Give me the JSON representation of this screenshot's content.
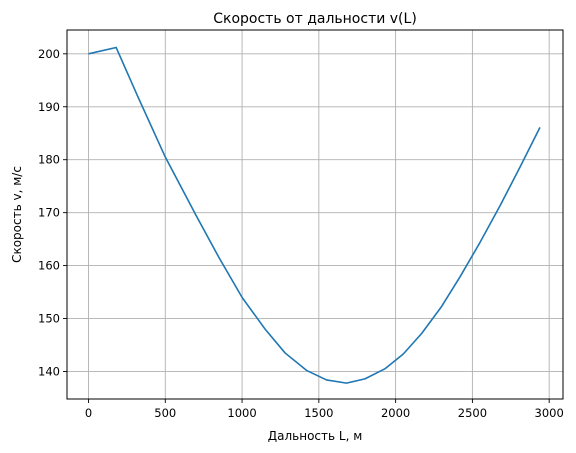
{
  "chart_data": {
    "type": "line",
    "title": "Скорость от дальности v(L)",
    "xlabel": "Дальность L, м",
    "ylabel": "Скорость v, м/с",
    "xlim": [
      -140,
      3090
    ],
    "ylim": [
      134.8,
      204.5
    ],
    "xticks": [
      0,
      500,
      1000,
      1500,
      2000,
      2500,
      3000
    ],
    "yticks": [
      140,
      150,
      160,
      170,
      180,
      190,
      200
    ],
    "grid": true,
    "series": [
      {
        "name": "v(L)",
        "color": "#1f77b4",
        "x": [
          0,
          180,
          320,
          500,
          700,
          850,
          1000,
          1150,
          1280,
          1420,
          1550,
          1680,
          1800,
          1930,
          2050,
          2170,
          2300,
          2420,
          2550,
          2680,
          2810,
          2940
        ],
        "y": [
          200.0,
          201.2,
          192.0,
          180.5,
          169.5,
          161.5,
          154.0,
          148.0,
          143.5,
          140.2,
          138.4,
          137.8,
          138.6,
          140.5,
          143.3,
          147.2,
          152.3,
          157.9,
          164.4,
          171.3,
          178.6,
          186.1
        ]
      }
    ]
  }
}
